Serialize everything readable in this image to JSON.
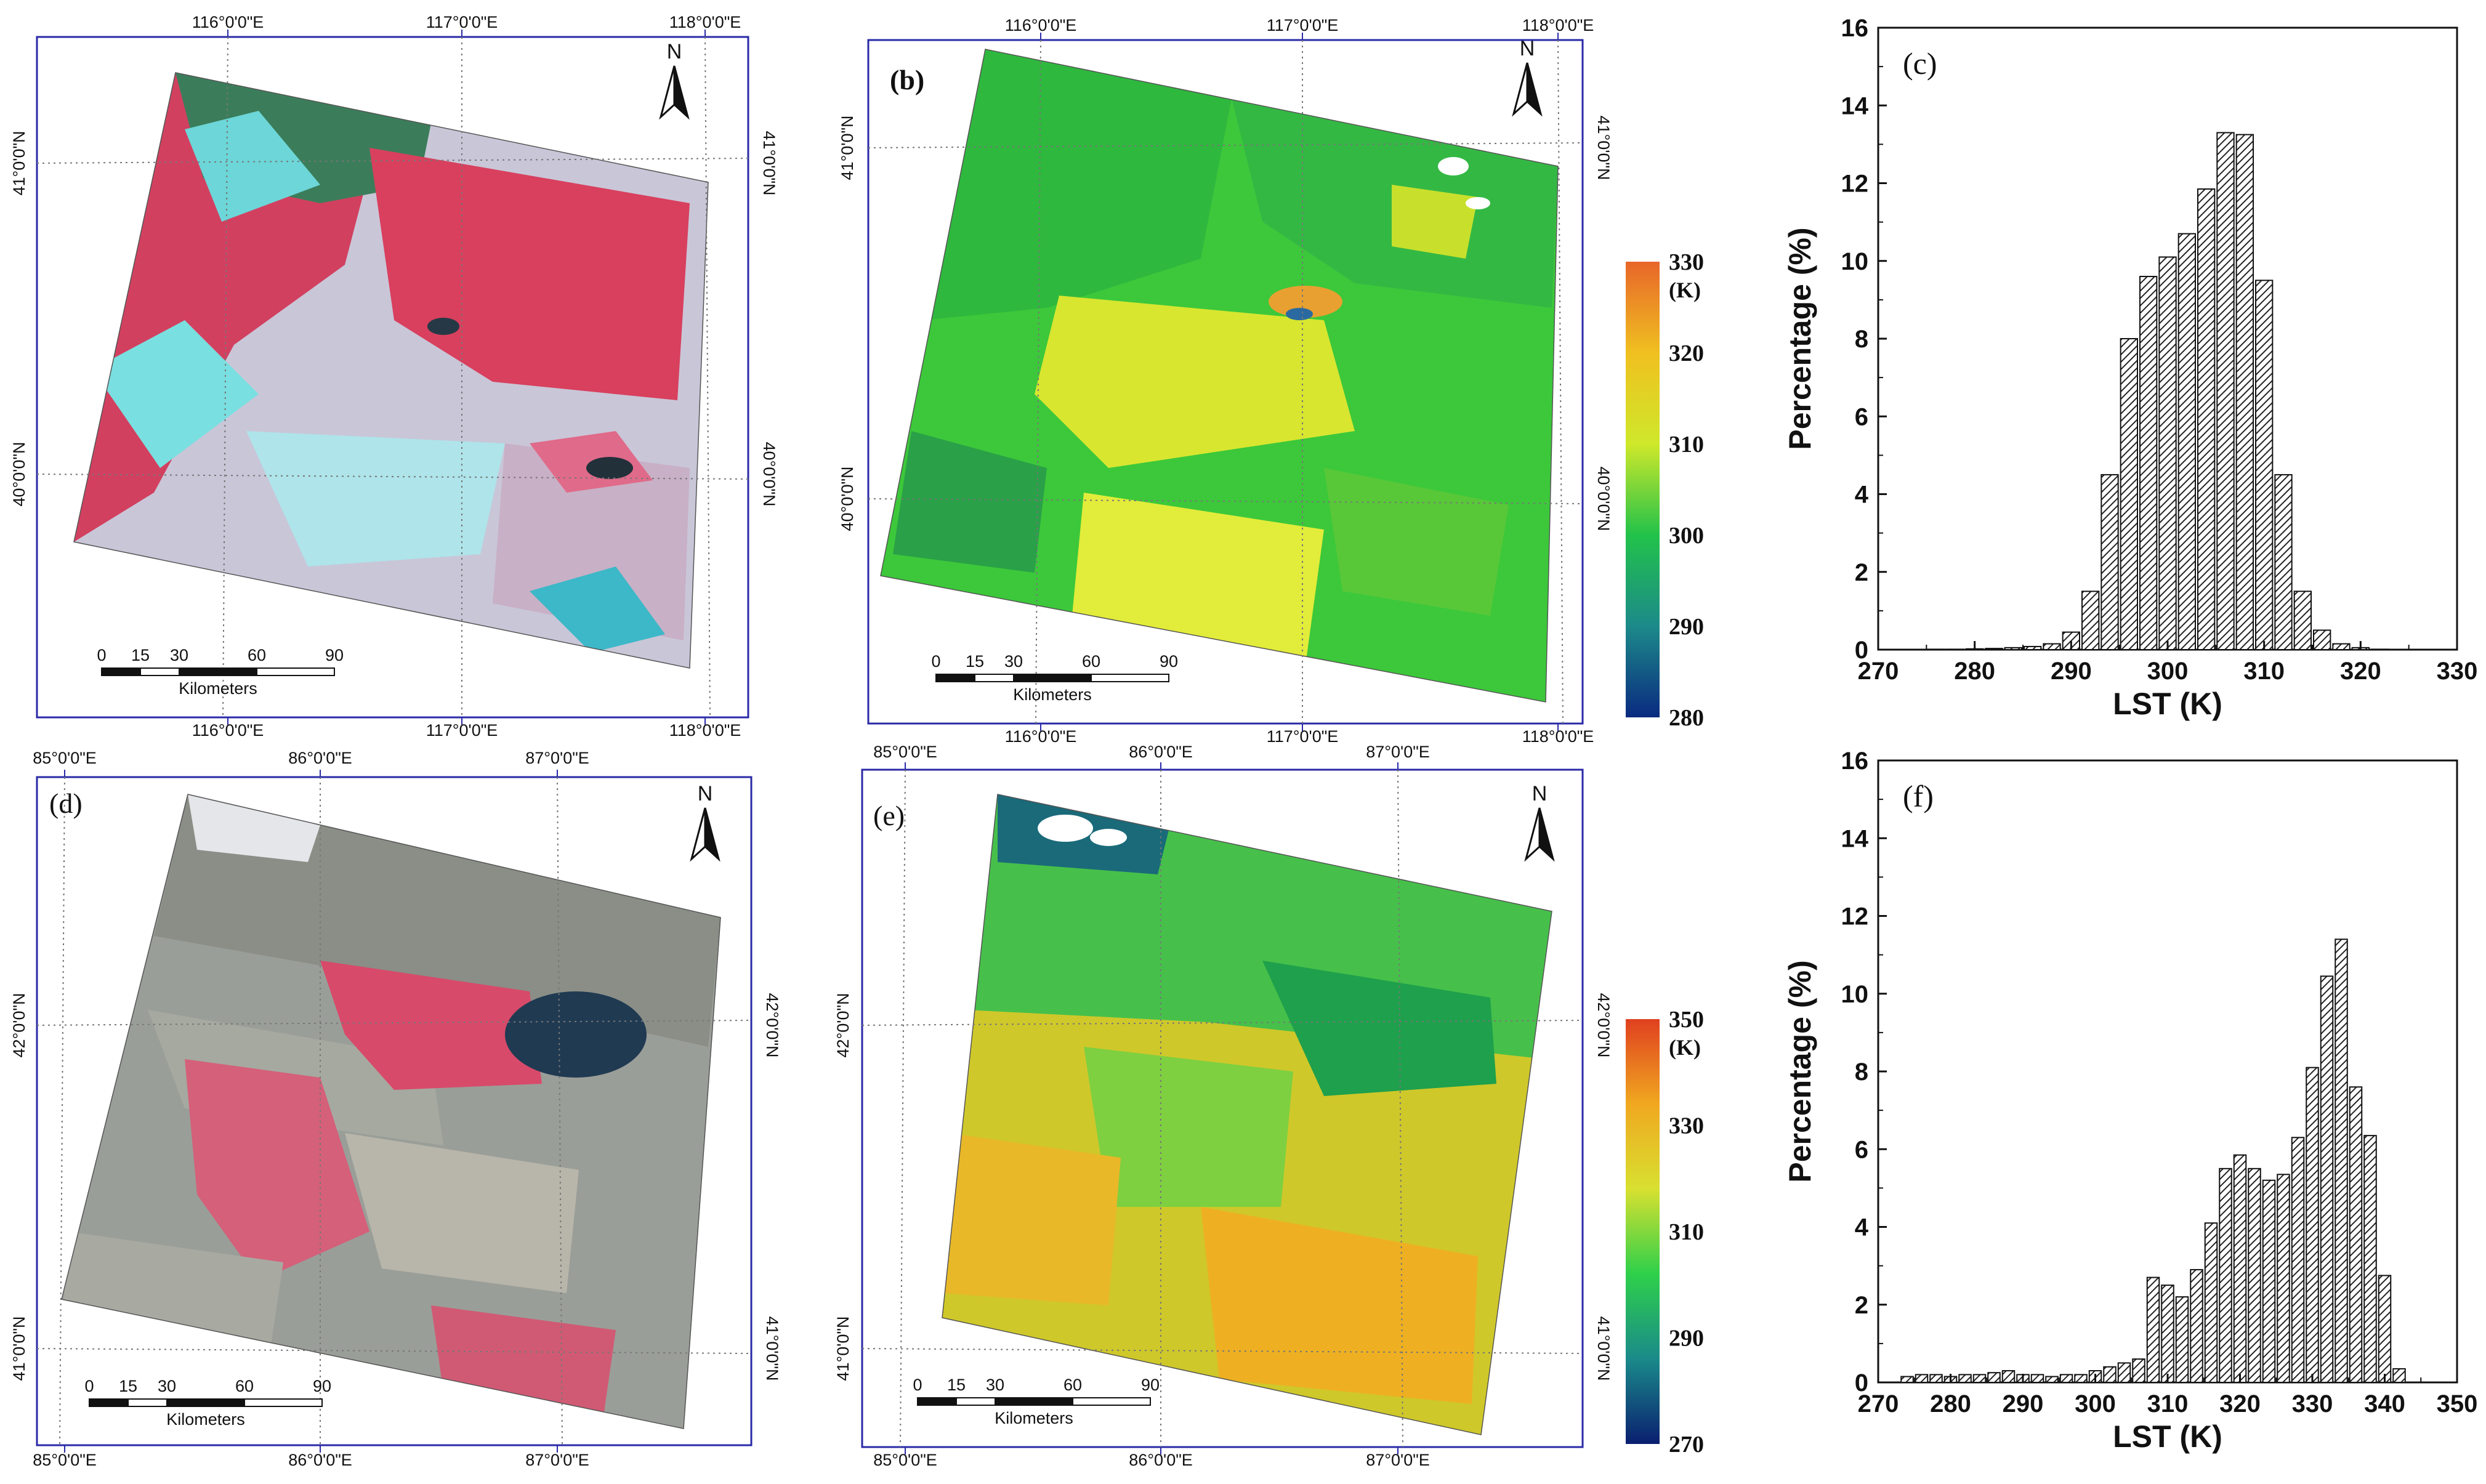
{
  "panels": {
    "a": {
      "label": "",
      "lon_ticks": [
        "116°0'0\"E",
        "117°0'0\"E",
        "118°0'0\"E"
      ],
      "lat_ticks": [
        "41°0'0\"N",
        "40°0'0\"N"
      ],
      "north": "N",
      "scale": {
        "ticks": [
          "0",
          "15",
          "30",
          "60",
          "90"
        ],
        "unit": "Kilometers"
      }
    },
    "b": {
      "label": "(b)",
      "lon_ticks": [
        "116°0'0\"E",
        "117°0'0\"E",
        "118°0'0\"E"
      ],
      "lat_ticks": [
        "41°0'0\"N",
        "40°0'0\"N"
      ],
      "north": "N",
      "scale": {
        "ticks": [
          "0",
          "15",
          "30",
          "60",
          "90"
        ],
        "unit": "Kilometers"
      },
      "colorbar": {
        "ticks": [
          "330",
          "320",
          "310",
          "300",
          "290",
          "280"
        ],
        "unit": "(K)",
        "min": 280,
        "max": 330,
        "colors": [
          "#0a2a80",
          "#1c8a8a",
          "#22c24a",
          "#cfe82a",
          "#f0c020",
          "#e8662a"
        ]
      }
    },
    "d": {
      "label": "(d)",
      "lon_ticks": [
        "85°0'0\"E",
        "86°0'0\"E",
        "87°0'0\"E"
      ],
      "lat_ticks": [
        "42°0'0\"N",
        "41°0'0\"N"
      ],
      "north": "N",
      "scale": {
        "ticks": [
          "0",
          "15",
          "30",
          "60",
          "90"
        ],
        "unit": "Kilometers"
      }
    },
    "e": {
      "label": "(e)",
      "lon_ticks": [
        "85°0'0\"E",
        "86°0'0\"E",
        "87°0'0\"E"
      ],
      "lat_ticks": [
        "42°0'0\"N",
        "41°0'0\"N"
      ],
      "north": "N",
      "scale": {
        "ticks": [
          "0",
          "15",
          "30",
          "60",
          "90"
        ],
        "unit": "Kilometers"
      },
      "colorbar": {
        "ticks": [
          "350",
          "330",
          "310",
          "290",
          "270"
        ],
        "unit": "(K)",
        "min": 270,
        "max": 350,
        "colors": [
          "#0a1f70",
          "#1a8a8a",
          "#2ed04a",
          "#d8e030",
          "#f0a820",
          "#e04020"
        ]
      }
    }
  },
  "chart_data": [
    {
      "type": "bar",
      "panel_label": "(c)",
      "xlabel": "LST (K)",
      "ylabel": "Percentage (%)",
      "xlim": [
        270,
        330
      ],
      "ylim": [
        0,
        16
      ],
      "xticks": [
        270,
        280,
        290,
        300,
        310,
        320,
        330
      ],
      "yticks": [
        0,
        2,
        4,
        6,
        8,
        10,
        12,
        14,
        16
      ],
      "bin_width": 2,
      "bins": [
        276,
        278,
        280,
        282,
        284,
        286,
        288,
        290,
        292,
        294,
        296,
        298,
        300,
        302,
        304,
        306,
        308,
        310,
        312,
        314,
        316,
        318,
        320,
        322
      ],
      "values": [
        0.01,
        0.01,
        0.02,
        0.03,
        0.05,
        0.08,
        0.15,
        0.45,
        1.5,
        4.5,
        8.0,
        9.6,
        10.1,
        10.7,
        11.85,
        13.3,
        13.25,
        9.5,
        4.5,
        1.5,
        0.5,
        0.15,
        0.05,
        0.01
      ]
    },
    {
      "type": "bar",
      "panel_label": "(f)",
      "xlabel": "LST (K)",
      "ylabel": "Percentage (%)",
      "xlim": [
        270,
        350
      ],
      "ylim": [
        0,
        16
      ],
      "xticks": [
        270,
        280,
        290,
        300,
        310,
        320,
        330,
        340,
        350
      ],
      "yticks": [
        0,
        2,
        4,
        6,
        8,
        10,
        12,
        14,
        16
      ],
      "bin_width": 2,
      "bins": [
        274,
        276,
        278,
        280,
        282,
        284,
        286,
        288,
        290,
        292,
        294,
        296,
        298,
        300,
        302,
        304,
        306,
        308,
        310,
        312,
        314,
        316,
        318,
        320,
        322,
        324,
        326,
        328,
        330,
        332,
        334,
        336,
        338,
        340,
        342
      ],
      "values": [
        0.15,
        0.2,
        0.2,
        0.15,
        0.2,
        0.2,
        0.25,
        0.3,
        0.2,
        0.2,
        0.15,
        0.2,
        0.2,
        0.3,
        0.4,
        0.5,
        0.6,
        2.7,
        2.5,
        2.2,
        2.9,
        4.1,
        5.5,
        5.85,
        5.5,
        5.2,
        5.35,
        6.3,
        8.1,
        10.45,
        11.4,
        7.6,
        6.35,
        2.75,
        0.35
      ]
    }
  ]
}
